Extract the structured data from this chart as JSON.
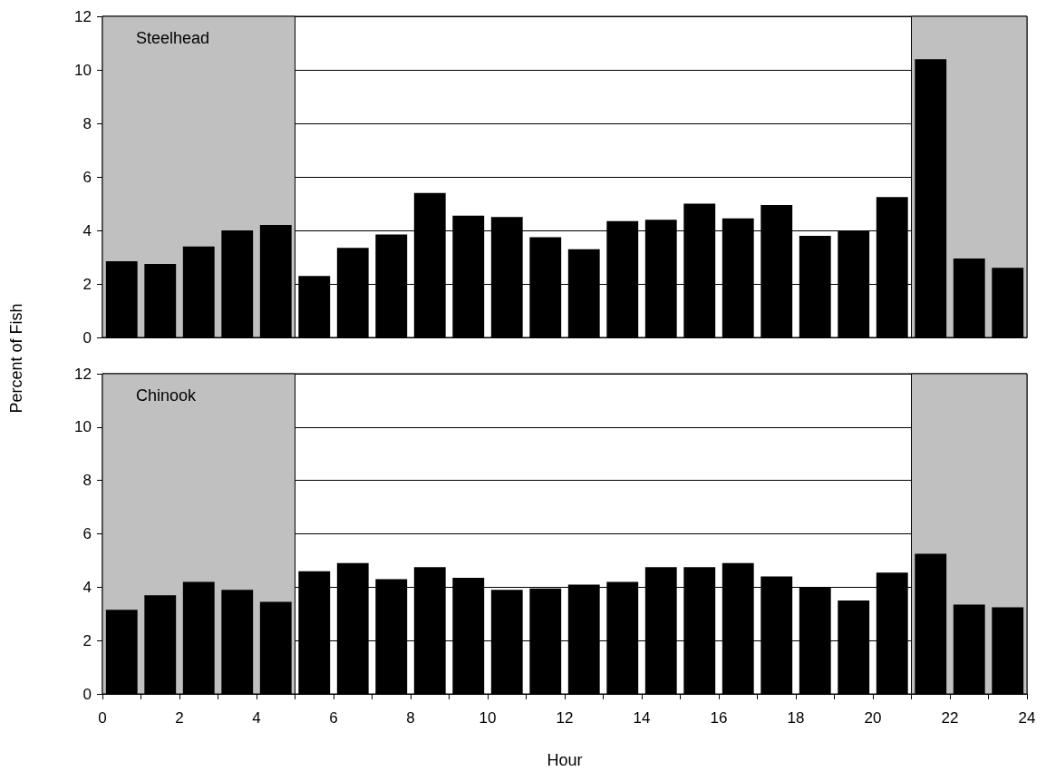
{
  "chart_data": [
    {
      "type": "bar",
      "title": "Steelhead",
      "ylabel": "Percent of Fish",
      "x": [
        0.5,
        1.5,
        2.5,
        3.5,
        4.5,
        5.5,
        6.5,
        7.5,
        8.5,
        9.5,
        10.5,
        11.5,
        12.5,
        13.5,
        14.5,
        15.5,
        16.5,
        17.5,
        18.5,
        19.5,
        20.5,
        21.5,
        22.5,
        23.5
      ],
      "values": [
        2.85,
        2.75,
        3.4,
        4.0,
        4.2,
        2.3,
        3.35,
        3.85,
        5.4,
        4.55,
        4.5,
        3.75,
        3.3,
        4.35,
        4.4,
        5.0,
        4.45,
        4.95,
        3.8,
        4.0,
        5.25,
        10.4,
        2.95,
        2.6
      ],
      "color": "#000000",
      "xlim": [
        0,
        24
      ],
      "ylim": [
        0,
        12
      ],
      "yticks": [
        0,
        2,
        4,
        6,
        8,
        10,
        12
      ],
      "grid": "y",
      "tick_labels": "y",
      "bands": [
        {
          "axis": "x",
          "from": 0,
          "to": 5,
          "color": "#c0c0c0"
        },
        {
          "axis": "x",
          "from": 21,
          "to": 24,
          "color": "#c0c0c0"
        }
      ]
    },
    {
      "type": "bar",
      "title": "Chinook",
      "xlabel": "Hour",
      "x": [
        0.5,
        1.5,
        2.5,
        3.5,
        4.5,
        5.5,
        6.5,
        7.5,
        8.5,
        9.5,
        10.5,
        11.5,
        12.5,
        13.5,
        14.5,
        15.5,
        16.5,
        17.5,
        18.5,
        19.5,
        20.5,
        21.5,
        22.5,
        23.5
      ],
      "values": [
        3.15,
        3.7,
        4.2,
        3.9,
        3.45,
        4.6,
        4.9,
        4.3,
        4.75,
        4.35,
        3.9,
        3.95,
        4.1,
        4.2,
        4.75,
        4.75,
        4.9,
        4.4,
        4.0,
        3.5,
        4.55,
        5.25,
        3.35,
        3.25
      ],
      "color": "#000000",
      "xlim": [
        0,
        24
      ],
      "xticks": [
        0,
        {
          "value": 1,
          "label": null
        },
        2,
        {
          "value": 3,
          "label": null
        },
        4,
        {
          "value": 5,
          "label": null
        },
        6,
        {
          "value": 7,
          "label": null
        },
        8,
        {
          "value": 9,
          "label": null
        },
        10,
        {
          "value": 11,
          "label": null
        },
        12,
        {
          "value": 13,
          "label": null
        },
        14,
        {
          "value": 15,
          "label": null
        },
        16,
        {
          "value": 17,
          "label": null
        },
        18,
        {
          "value": 19,
          "label": null
        },
        20,
        {
          "value": 21,
          "label": null
        },
        22,
        {
          "value": 23,
          "label": null
        },
        24
      ],
      "ylim": [
        0,
        12
      ],
      "yticks": [
        0,
        2,
        4,
        6,
        8,
        10,
        12
      ],
      "grid": "y",
      "bands": [
        {
          "axis": "x",
          "from": 0,
          "to": 5,
          "color": "#c0c0c0"
        },
        {
          "axis": "x",
          "from": 21,
          "to": 24,
          "color": "#c0c0c0"
        }
      ]
    }
  ]
}
